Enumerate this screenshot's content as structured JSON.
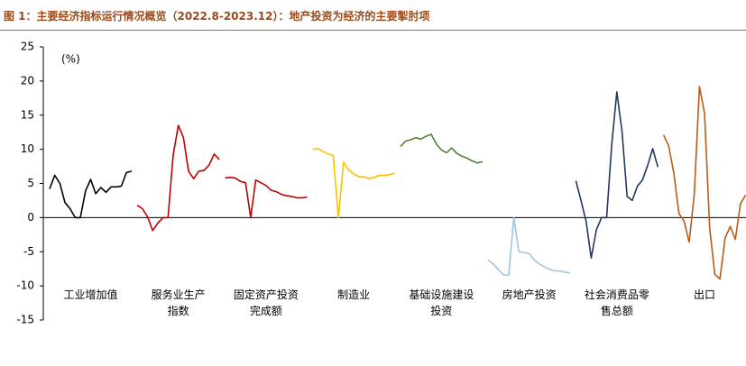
{
  "chart_data": {
    "type": "line",
    "title": "图 1：主要经济指标运行情况概览（2022.8-2023.12）：地产投资为经济的主要掣肘项",
    "y_unit_label": "(%)",
    "ylim": [
      -15,
      25
    ],
    "yticks": [
      -15,
      -10,
      -5,
      0,
      5,
      10,
      15,
      20,
      25
    ],
    "series": [
      {
        "name": "工业增加值",
        "color": "#000000",
        "values": [
          4.2,
          6.2,
          5.0,
          2.2,
          1.3,
          0,
          0,
          3.9,
          5.6,
          3.5,
          4.4,
          3.7,
          4.5,
          4.5,
          4.6,
          6.6,
          6.8
        ]
      },
      {
        "name": "服务业生产\n指数",
        "color": "#c00000",
        "values": [
          1.8,
          1.3,
          0.1,
          -1.9,
          -0.8,
          0,
          0,
          9.2,
          13.5,
          11.7,
          6.8,
          5.7,
          6.8,
          6.9,
          7.7,
          9.3,
          8.5
        ]
      },
      {
        "name": "固定资产投资\n完成额",
        "color": "#c00000",
        "values": [
          5.8,
          5.9,
          5.8,
          5.3,
          5.1,
          0,
          5.5,
          5.1,
          4.7,
          4.0,
          3.8,
          3.4,
          3.2,
          3.1,
          2.9,
          2.9,
          3.0
        ]
      },
      {
        "name": "制造业",
        "color": "#ffc000",
        "values": [
          10.0,
          10.1,
          9.7,
          9.3,
          9.1,
          0,
          8.1,
          7.0,
          6.4,
          6.0,
          6.0,
          5.7,
          5.9,
          6.2,
          6.2,
          6.3,
          6.5
        ]
      },
      {
        "name": "基础设施建设\n投资",
        "color": "#548235",
        "values": [
          10.4,
          11.2,
          11.4,
          11.7,
          11.5,
          11.9,
          12.2,
          10.8,
          9.9,
          9.5,
          10.2,
          9.4,
          9.0,
          8.7,
          8.3,
          8.0,
          8.2
        ]
      },
      {
        "name": "房地产投资",
        "color": "#9dc3e6",
        "values": [
          -6.2,
          -6.8,
          -7.6,
          -8.4,
          -8.4,
          0,
          -5.0,
          -5.1,
          -5.3,
          -6.2,
          -6.8,
          -7.2,
          -7.6,
          -7.8,
          -7.8,
          -8.0,
          -8.1
        ]
      },
      {
        "name": "社会消费品零\n售总额",
        "color": "#1f3864",
        "values": [
          5.4,
          2.5,
          -0.5,
          -5.9,
          -1.8,
          0,
          0,
          10.6,
          18.4,
          12.7,
          3.1,
          2.5,
          4.6,
          5.5,
          7.6,
          10.1,
          7.4
        ]
      },
      {
        "name": "出口",
        "color": "#b85c1a",
        "values": [
          12.1,
          10.5,
          6.5,
          0.6,
          -0.5,
          -3.6,
          3.5,
          19.2,
          15.2,
          -1.5,
          -8.3,
          -9.0,
          -3.0,
          -1.3,
          -3.2,
          2.0,
          3.3
        ]
      }
    ]
  }
}
